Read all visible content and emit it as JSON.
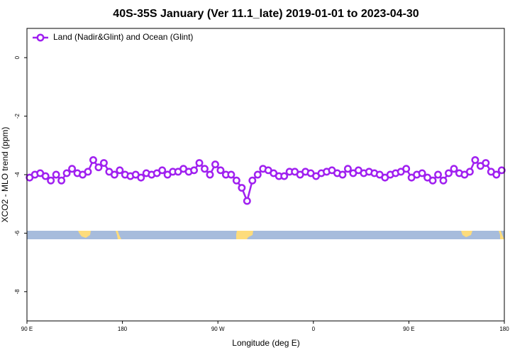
{
  "chart_data": {
    "type": "line",
    "title": "40S-35S January (Ver 11.1_late)   2019-01-01 to 2023-04-30",
    "x_label": "Longitude (deg E)",
    "y_label": "XCO2 - MLO trend (ppm)",
    "legend": "top-left",
    "xlim": [
      90,
      540
    ],
    "xticks": [
      {
        "value": 90,
        "label": "90 E"
      },
      180,
      {
        "value": 270,
        "label": "90 W"
      },
      {
        "value": 360,
        "label": "0"
      },
      {
        "value": 450,
        "label": "90 E"
      },
      {
        "value": 540,
        "label": "180"
      }
    ],
    "ylim": [
      -9,
      1
    ],
    "yticks": [
      0,
      -2,
      -4,
      -6,
      -8
    ],
    "x": [
      92.5,
      97.5,
      102.5,
      107.5,
      112.5,
      117.5,
      122.5,
      127.5,
      132.5,
      137.5,
      142.5,
      147.5,
      152.5,
      157.5,
      162.5,
      167.5,
      172.5,
      177.5,
      182.5,
      187.5,
      192.5,
      197.5,
      202.5,
      207.5,
      212.5,
      217.5,
      222.5,
      227.5,
      232.5,
      237.5,
      242.5,
      247.5,
      252.5,
      257.5,
      262.5,
      267.5,
      272.5,
      277.5,
      282.5,
      287.5,
      292.5,
      297.5,
      302.5,
      307.5,
      312.5,
      317.5,
      322.5,
      327.5,
      332.5,
      337.5,
      342.5,
      347.5,
      352.5,
      357.5,
      362.5,
      367.5,
      372.5,
      377.5,
      382.5,
      387.5,
      392.5,
      397.5,
      402.5,
      407.5,
      412.5,
      417.5,
      422.5,
      427.5,
      432.5,
      437.5,
      442.5,
      447.5,
      452.5,
      457.5,
      462.5,
      467.5,
      472.5,
      477.5,
      482.5,
      487.5,
      492.5,
      497.5,
      502.5,
      507.5,
      512.5,
      517.5,
      522.5,
      527.5,
      532.5,
      537.5
    ],
    "series": [
      {
        "name": "Land (Nadir&Glint) and Ocean (Glint)",
        "color": "#a020f0",
        "values": [
          -4.1,
          -4.0,
          -3.95,
          -4.05,
          -4.2,
          -4.0,
          -4.2,
          -3.95,
          -3.8,
          -3.95,
          -4.0,
          -3.9,
          -3.5,
          -3.75,
          -3.6,
          -3.9,
          -4.0,
          -3.85,
          -4.0,
          -4.05,
          -4.0,
          -4.1,
          -3.95,
          -4.0,
          -3.95,
          -3.85,
          -4.0,
          -3.9,
          -3.9,
          -3.8,
          -3.9,
          -3.85,
          -3.6,
          -3.8,
          -4.0,
          -3.65,
          -3.85,
          -4.0,
          -4.0,
          -4.2,
          -4.45,
          -4.9,
          -4.2,
          -4.0,
          -3.8,
          -3.85,
          -3.95,
          -4.05,
          -4.05,
          -3.9,
          -3.9,
          -4.0,
          -3.9,
          -3.95,
          -4.05,
          -3.95,
          -3.9,
          -3.85,
          -3.95,
          -4.0,
          -3.8,
          -3.95,
          -3.85,
          -3.95,
          -3.9,
          -3.95,
          -4.0,
          -4.1,
          -4.0,
          -3.95,
          -3.9,
          -3.8,
          -4.1,
          -4.0,
          -3.95,
          -4.1,
          -4.2,
          -4.0,
          -4.2,
          -3.95,
          -3.8,
          -3.95,
          -4.0,
          -3.9,
          -3.5,
          -3.7,
          -3.6,
          -3.9,
          -4.0,
          -3.85
        ]
      }
    ]
  }
}
